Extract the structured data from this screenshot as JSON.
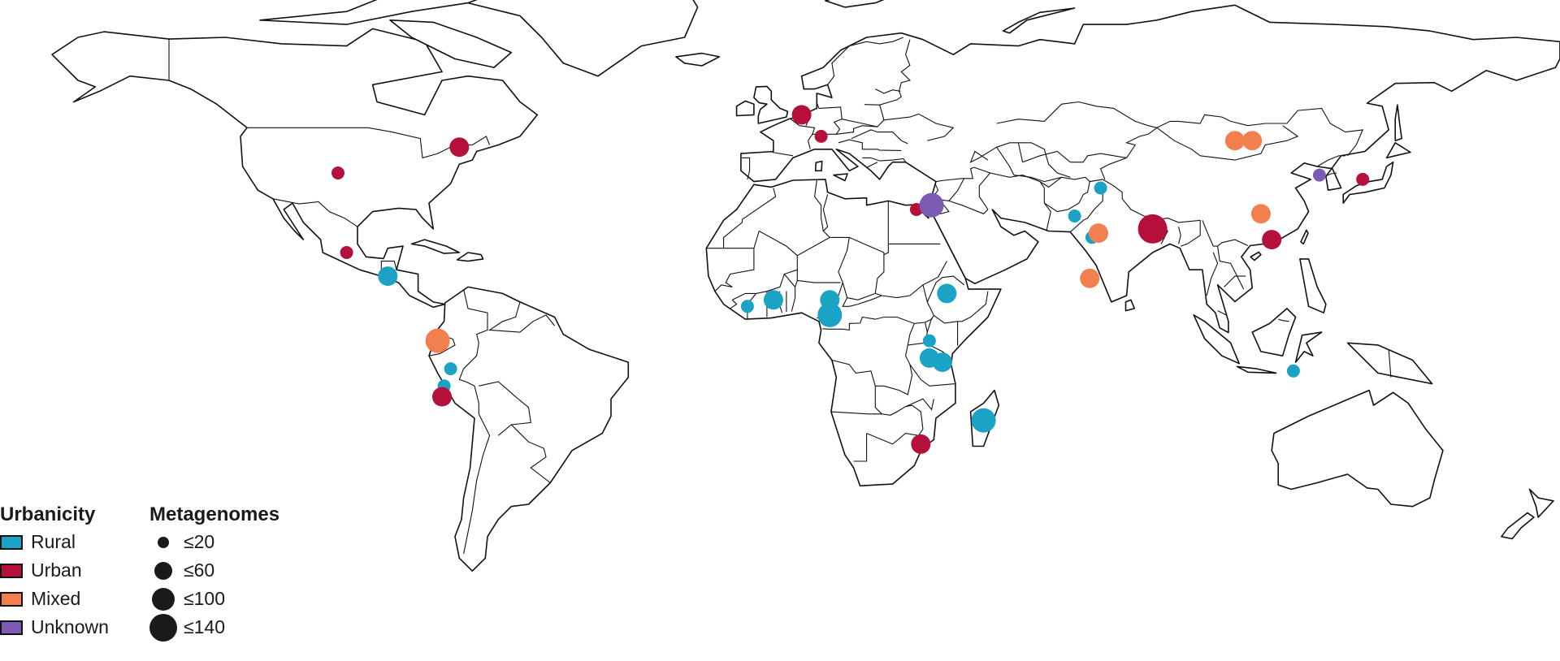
{
  "legend": {
    "urbanicity_title": "Urbanicity",
    "categories": [
      {
        "label": "Rural",
        "color": "#1ba3c6"
      },
      {
        "label": "Urban",
        "color": "#b5103c"
      },
      {
        "label": "Mixed",
        "color": "#f2804f"
      },
      {
        "label": "Unknown",
        "color": "#7b5bb3"
      }
    ],
    "size_title": "Metagenomes",
    "sizes": [
      {
        "label": "≤20",
        "max": 20
      },
      {
        "label": "≤60",
        "max": 60
      },
      {
        "label": "≤100",
        "max": 100
      },
      {
        "label": "≤140",
        "max": 140
      }
    ]
  },
  "sites": [
    {
      "lon": -102,
      "lat": 38.5,
      "urbanicity": "Urban",
      "size": 20
    },
    {
      "lon": -74,
      "lat": 44.5,
      "urbanicity": "Urban",
      "size": 60
    },
    {
      "lon": -100,
      "lat": 20,
      "urbanicity": "Urban",
      "size": 20
    },
    {
      "lon": -90.5,
      "lat": 14.5,
      "urbanicity": "Rural",
      "size": 60
    },
    {
      "lon": -79,
      "lat": -0.5,
      "urbanicity": "Mixed",
      "size": 100
    },
    {
      "lon": -76,
      "lat": -7,
      "urbanicity": "Rural",
      "size": 20
    },
    {
      "lon": -77.5,
      "lat": -11,
      "urbanicity": "Rural",
      "size": 20
    },
    {
      "lon": -78,
      "lat": -13.5,
      "urbanicity": "Urban",
      "size": 60
    },
    {
      "lon": 5,
      "lat": 52,
      "urbanicity": "Urban",
      "size": 60
    },
    {
      "lon": 9.5,
      "lat": 47,
      "urbanicity": "Urban",
      "size": 20
    },
    {
      "lon": -7.5,
      "lat": 7.5,
      "urbanicity": "Rural",
      "size": 20
    },
    {
      "lon": -1.5,
      "lat": 9,
      "urbanicity": "Rural",
      "size": 60
    },
    {
      "lon": 11.5,
      "lat": 9,
      "urbanicity": "Rural",
      "size": 60
    },
    {
      "lon": 11.5,
      "lat": 5.5,
      "urbanicity": "Rural",
      "size": 100
    },
    {
      "lon": 31.5,
      "lat": 30,
      "urbanicity": "Urban",
      "size": 20
    },
    {
      "lon": 35,
      "lat": 31,
      "urbanicity": "Unknown",
      "size": 100
    },
    {
      "lon": 38.5,
      "lat": 10.5,
      "urbanicity": "Rural",
      "size": 60
    },
    {
      "lon": 34.5,
      "lat": -0.5,
      "urbanicity": "Rural",
      "size": 20
    },
    {
      "lon": 34.5,
      "lat": -4.5,
      "urbanicity": "Rural",
      "size": 60
    },
    {
      "lon": 37.5,
      "lat": -5.5,
      "urbanicity": "Rural",
      "size": 60
    },
    {
      "lon": 32.5,
      "lat": -24.5,
      "urbanicity": "Urban",
      "size": 60
    },
    {
      "lon": 47,
      "lat": -19,
      "urbanicity": "Rural",
      "size": 100
    },
    {
      "lon": 68,
      "lat": 28.5,
      "urbanicity": "Rural",
      "size": 20
    },
    {
      "lon": 74,
      "lat": 35,
      "urbanicity": "Rural",
      "size": 20
    },
    {
      "lon": 72,
      "lat": 23.5,
      "urbanicity": "Rural",
      "size": 20
    },
    {
      "lon": 73.5,
      "lat": 24.5,
      "urbanicity": "Mixed",
      "size": 60
    },
    {
      "lon": 71.5,
      "lat": 14,
      "urbanicity": "Mixed",
      "size": 60
    },
    {
      "lon": 86,
      "lat": 25.5,
      "urbanicity": "Urban",
      "size": 140
    },
    {
      "lon": 105,
      "lat": 46,
      "urbanicity": "Mixed",
      "size": 60
    },
    {
      "lon": 109,
      "lat": 46,
      "urbanicity": "Mixed",
      "size": 60
    },
    {
      "lon": 111,
      "lat": 29,
      "urbanicity": "Mixed",
      "size": 60
    },
    {
      "lon": 113.5,
      "lat": 23,
      "urbanicity": "Urban",
      "size": 60
    },
    {
      "lon": 124.5,
      "lat": 38,
      "urbanicity": "Unknown",
      "size": 20
    },
    {
      "lon": 134.5,
      "lat": 37,
      "urbanicity": "Urban",
      "size": 20
    },
    {
      "lon": 118.5,
      "lat": -7.5,
      "urbanicity": "Rural",
      "size": 20
    }
  ]
}
